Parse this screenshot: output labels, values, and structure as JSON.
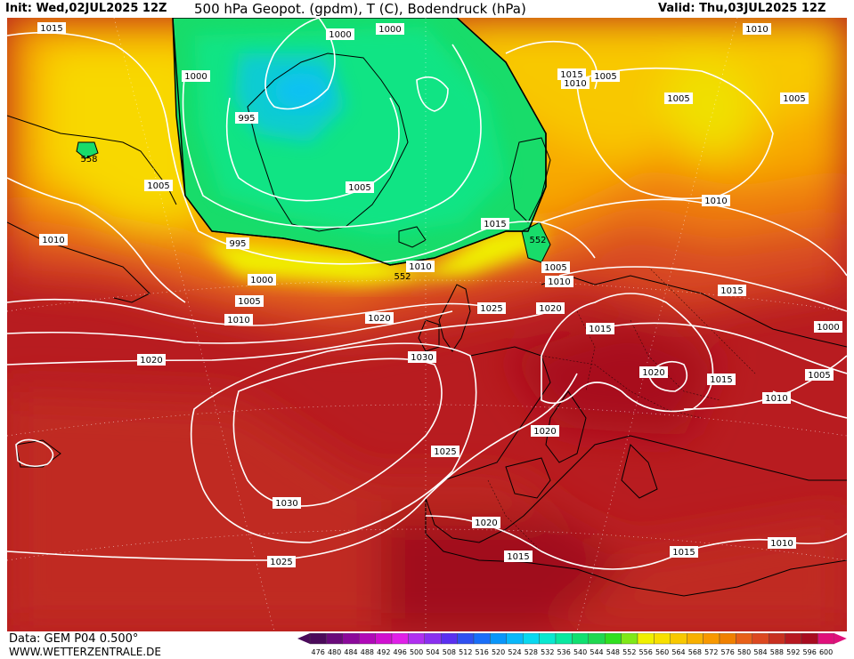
{
  "header": {
    "init": "Init: Wed,02JUL2025 12Z",
    "title": "500 hPa Geopot. (gpdm), T (C), Bodendruck (hPa)",
    "valid": "Valid: Thu,03JUL2025 12Z"
  },
  "footer": {
    "data_source": "Data: GEM P04 0.500°",
    "website": "WWW.WETTERZENTRALE.DE"
  },
  "legend": {
    "values": [
      "476",
      "480",
      "484",
      "488",
      "492",
      "496",
      "500",
      "504",
      "508",
      "512",
      "516",
      "520",
      "524",
      "528",
      "532",
      "536",
      "540",
      "544",
      "548",
      "552",
      "556",
      "560",
      "564",
      "568",
      "572",
      "576",
      "580",
      "584",
      "588",
      "592",
      "596",
      "600"
    ],
    "colors": [
      "#4b0a5a",
      "#6a0a7a",
      "#8b0a9a",
      "#b00ab8",
      "#d010d0",
      "#e020e8",
      "#b030f0",
      "#8a30f0",
      "#5a30f0",
      "#3050f0",
      "#1a6ef8",
      "#0a96fa",
      "#0ab8fa",
      "#0ad8f0",
      "#0ae8d0",
      "#0ae8a0",
      "#10e070",
      "#20d850",
      "#30e020",
      "#80e818",
      "#f0f000",
      "#f8e000",
      "#f8c800",
      "#f8b000",
      "#f89800",
      "#f08000",
      "#e86018",
      "#dc4820",
      "#c83020",
      "#b81820",
      "#a80c20",
      "#e0107a"
    ]
  },
  "isobar_labels": [
    {
      "id": "l1",
      "text": "1015"
    },
    {
      "id": "l2",
      "text": "1000"
    },
    {
      "id": "l3",
      "text": "1000"
    },
    {
      "id": "l4",
      "text": "1010"
    },
    {
      "id": "l5",
      "text": "1000"
    },
    {
      "id": "l6",
      "text": "1015"
    },
    {
      "id": "l7",
      "text": "1010"
    },
    {
      "id": "l8",
      "text": "1005"
    },
    {
      "id": "l9",
      "text": "1005"
    },
    {
      "id": "l10",
      "text": "1005"
    },
    {
      "id": "l11",
      "text": "995"
    },
    {
      "id": "l12",
      "text": "1005"
    },
    {
      "id": "l13",
      "text": "1005"
    },
    {
      "id": "l14",
      "text": "1010"
    },
    {
      "id": "l15",
      "text": "1010"
    },
    {
      "id": "l16",
      "text": "995"
    },
    {
      "id": "l17",
      "text": "1015"
    },
    {
      "id": "l18",
      "text": "1010"
    },
    {
      "id": "l19",
      "text": "1005"
    },
    {
      "id": "l20",
      "text": "1010"
    },
    {
      "id": "l21",
      "text": "1000"
    },
    {
      "id": "l22",
      "text": "1005"
    },
    {
      "id": "l23",
      "text": "1025"
    },
    {
      "id": "l24",
      "text": "1020"
    },
    {
      "id": "l25",
      "text": "1015"
    },
    {
      "id": "l26",
      "text": "1010"
    },
    {
      "id": "l27",
      "text": "1020"
    },
    {
      "id": "l28",
      "text": "1015"
    },
    {
      "id": "l29",
      "text": "1000"
    },
    {
      "id": "l30",
      "text": "1020"
    },
    {
      "id": "l31",
      "text": "1030"
    },
    {
      "id": "l32",
      "text": "1020"
    },
    {
      "id": "l33",
      "text": "1015"
    },
    {
      "id": "l34",
      "text": "1005"
    },
    {
      "id": "l35",
      "text": "1010"
    },
    {
      "id": "l36",
      "text": "1020"
    },
    {
      "id": "l37",
      "text": "1025"
    },
    {
      "id": "l38",
      "text": "1030"
    },
    {
      "id": "l39",
      "text": "1020"
    },
    {
      "id": "l40",
      "text": "1025"
    },
    {
      "id": "l41",
      "text": "1015"
    },
    {
      "id": "l42",
      "text": "1015"
    },
    {
      "id": "l43",
      "text": "1010"
    }
  ],
  "height_labels": [
    {
      "id": "h1",
      "text": "558"
    },
    {
      "id": "h2",
      "text": "552"
    },
    {
      "id": "h3",
      "text": "552"
    }
  ],
  "colors": {
    "low_green": "#10e070",
    "deep_red": "#b81820"
  }
}
